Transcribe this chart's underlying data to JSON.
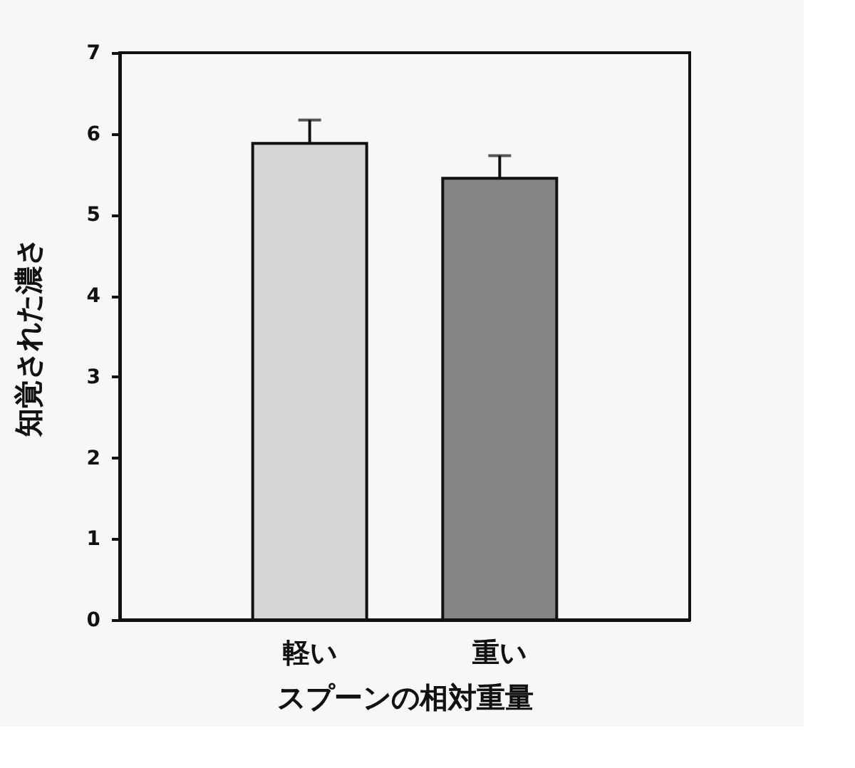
{
  "chart_data": {
    "type": "bar",
    "xlabel": "スプーンの相対重量",
    "ylabel": "知覚された濃さ",
    "categories": [
      "軽い",
      "重い"
    ],
    "values": [
      5.88,
      5.45
    ],
    "colors": [
      "#d6d6d6",
      "#858585"
    ],
    "errors": [
      0.29,
      0.28
    ],
    "ylim": [
      0,
      7
    ],
    "yticks": [
      0,
      1,
      2,
      3,
      4,
      5,
      6,
      7
    ],
    "grid": false
  }
}
